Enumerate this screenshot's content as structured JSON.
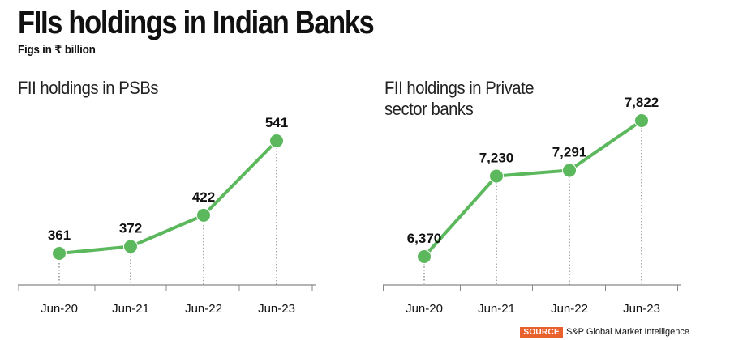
{
  "header": {
    "title": "FIIs holdings in Indian Banks",
    "subtitle": "Figs in ₹ billion"
  },
  "source": {
    "tag": "SOURCE",
    "text": "S&P Global Market Intelligence"
  },
  "colors": {
    "line": "#5cb85c",
    "marker": "#5cb85c",
    "axis": "#888888",
    "dotted": "#555555",
    "source_tag": "#e8612c"
  },
  "chart_data": [
    {
      "type": "line",
      "title": "FII holdings in PSBs",
      "categories": [
        "Jun-20",
        "Jun-21",
        "Jun-22",
        "Jun-23"
      ],
      "values": [
        361,
        372,
        422,
        541
      ],
      "value_labels": [
        "361",
        "372",
        "422",
        "541"
      ],
      "grid": false
    },
    {
      "type": "line",
      "title": "FII holdings in Private sector banks",
      "categories": [
        "Jun-20",
        "Jun-21",
        "Jun-22",
        "Jun-23"
      ],
      "values": [
        6370,
        7230,
        7291,
        7822
      ],
      "value_labels": [
        "6,370",
        "7,230",
        "7,291",
        "7,822"
      ],
      "grid": false
    }
  ]
}
